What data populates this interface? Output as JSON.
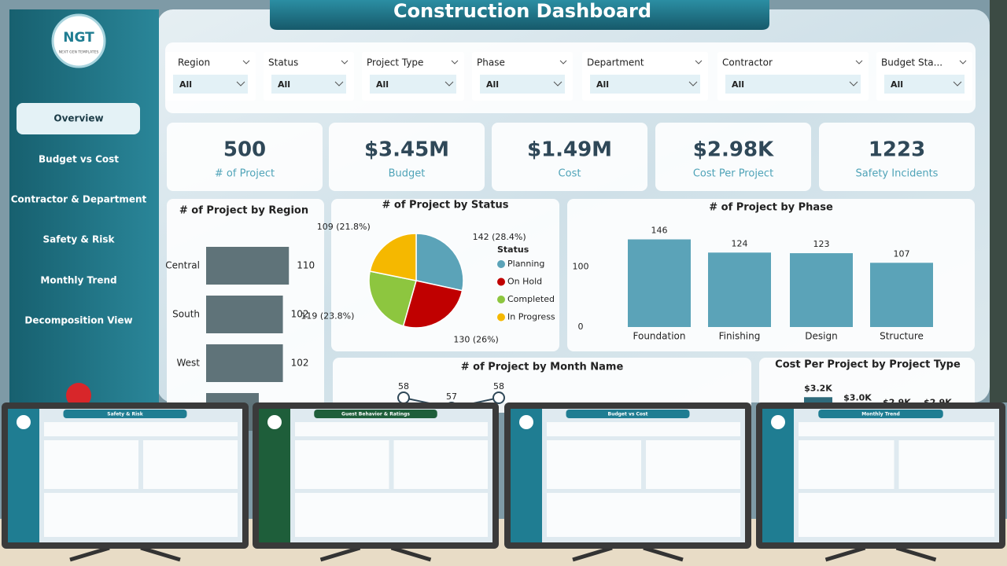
{
  "header": {
    "title": "Construction Dashboard"
  },
  "logo": {
    "text": "NGT",
    "tagline": "NEXT GEN TEMPLATES"
  },
  "nav": [
    "Overview",
    "Budget vs Cost",
    "Contractor & Department",
    "Safety & Risk",
    "Monthly Trend",
    "Decomposition View"
  ],
  "filters": [
    {
      "label": "Region",
      "value": "All"
    },
    {
      "label": "Status",
      "value": "All"
    },
    {
      "label": "Project Type",
      "value": "All"
    },
    {
      "label": "Phase",
      "value": "All"
    },
    {
      "label": "Department",
      "value": "All"
    },
    {
      "label": "Contractor",
      "value": "All"
    },
    {
      "label": "Budget Sta...",
      "value": "All"
    }
  ],
  "kpis": [
    {
      "value": "500",
      "label": "# of Project"
    },
    {
      "value": "$3.45M",
      "label": "Budget"
    },
    {
      "value": "$1.49M",
      "label": "Cost"
    },
    {
      "value": "$2.98K",
      "label": "Cost Per Project"
    },
    {
      "value": "1223",
      "label": "Safety Incidents"
    }
  ],
  "chart_data": [
    {
      "type": "hbar",
      "title": "# of Project by Region",
      "categories": [
        "Central",
        "South",
        "West",
        null
      ],
      "values": [
        110,
        102,
        102,
        70
      ],
      "color": "#5f7379",
      "xlim": [
        0,
        115
      ]
    },
    {
      "type": "pie",
      "title": "# of Project by Status",
      "legend_title": "Status",
      "categories": [
        "Planning",
        "On Hold",
        "Completed",
        "In Progress"
      ],
      "values": [
        142,
        130,
        119,
        109
      ],
      "value_labels": [
        "142 (28.4%)",
        "130 (26%)",
        "119 (23.8%)",
        "109 (21.8%)"
      ],
      "colors": [
        "#5ba3b8",
        "#c00000",
        "#8dc63f",
        "#f5b800"
      ]
    },
    {
      "type": "bar",
      "title": "# of Project by Phase",
      "categories": [
        "Foundation",
        "Finishing",
        "Design",
        "Structure"
      ],
      "values": [
        146,
        124,
        123,
        107
      ],
      "color": "#5ba3b8",
      "ylim": [
        0,
        165
      ],
      "yticks": [
        0,
        100
      ]
    },
    {
      "type": "line",
      "title": "# of Project by Month Name",
      "categories": [
        null,
        null,
        null
      ],
      "values": [
        58,
        57,
        58
      ],
      "color": "#2f4858",
      "ylim": [
        50,
        60
      ]
    },
    {
      "type": "bar",
      "title": "Cost Per Project by Project Type",
      "categories": [
        null,
        null,
        null,
        null
      ],
      "values": [
        3200,
        3000,
        2900,
        2900
      ],
      "value_labels": [
        "$3.2K",
        "$3.0K",
        "$2.9K",
        "$2.9K"
      ],
      "color": "#2f6b7c",
      "ylim": [
        0,
        3500
      ]
    }
  ],
  "thumbnails": [
    "Safety & Risk",
    "Guest Behavior & Ratings",
    "Budget vs Cost",
    "Monthly Trend"
  ]
}
